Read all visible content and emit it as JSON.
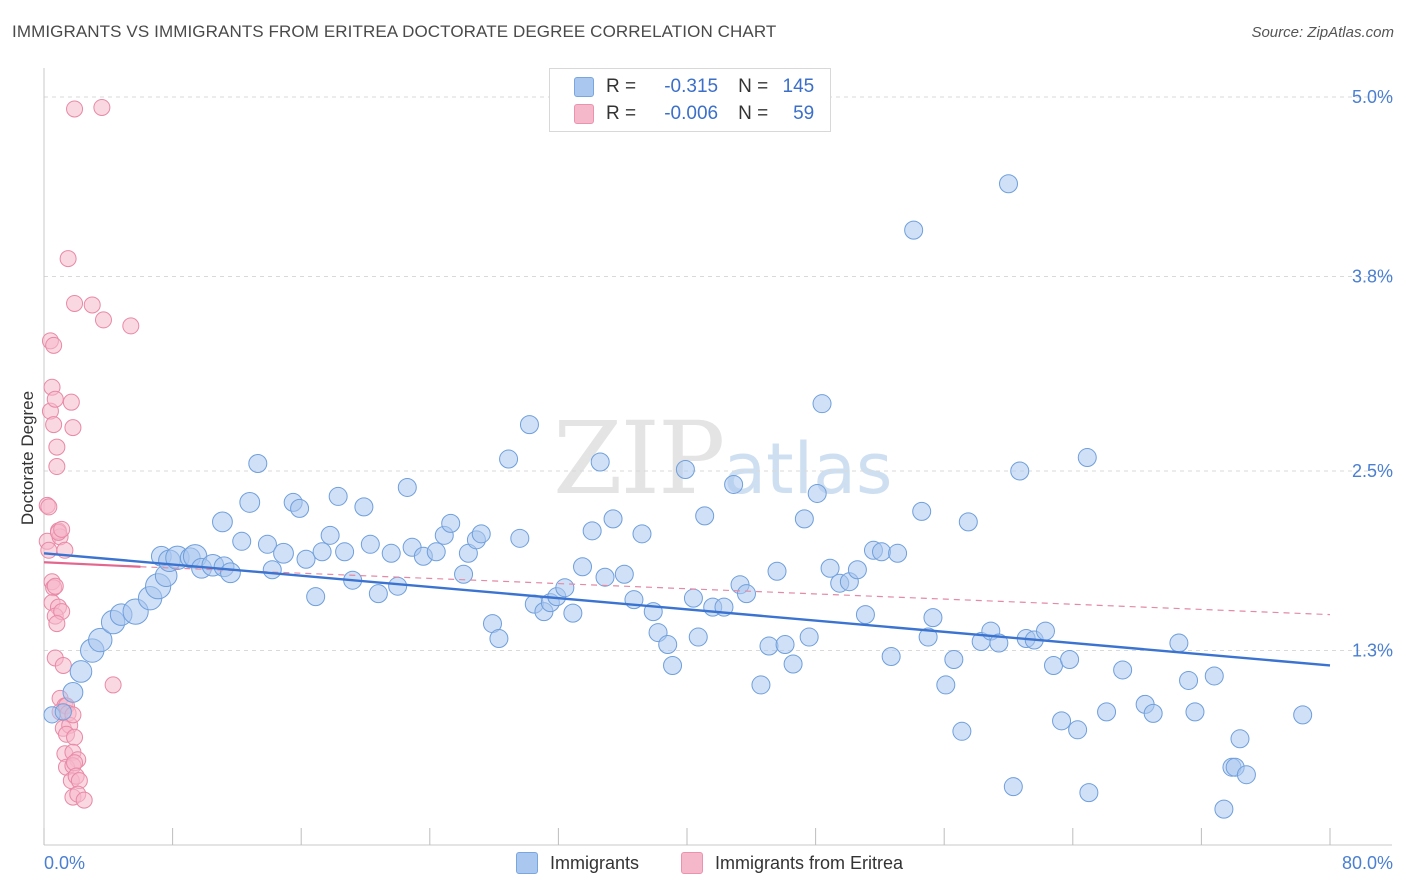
{
  "title": "IMMIGRANTS VS IMMIGRANTS FROM ERITREA DOCTORATE DEGREE CORRELATION CHART",
  "source": "Source: ZipAtlas.com",
  "watermark": {
    "zip": "ZIP",
    "atlas": "atlas"
  },
  "colors": {
    "blue": "#3b73d1",
    "blue_fill": "#a9c7ef",
    "pink": "#e3668f",
    "pink_fill": "#f5b8cb",
    "tick": "#4a7fd1"
  },
  "legend": {
    "rows": [
      {
        "r_label": "R =",
        "r_value": "-0.315",
        "n_label": "N =",
        "n_value": "145"
      },
      {
        "r_label": "R =",
        "r_value": "-0.006",
        "n_label": "N =",
        "n_value": "59"
      }
    ]
  },
  "bottom_legend": [
    "Immigrants",
    "Immigrants from Eritrea"
  ],
  "chart_data": {
    "type": "scatter",
    "title": "IMMIGRANTS VS IMMIGRANTS FROM ERITREA DOCTORATE DEGREE CORRELATION CHART",
    "xlabel": "",
    "ylabel": "Doctorate Degree",
    "xlim": [
      0,
      80
    ],
    "ylim": [
      0,
      5.15
    ],
    "x_tick_labels": [
      "0.0%",
      "80.0%"
    ],
    "y_ticks": [
      1.3,
      2.5,
      3.8,
      5.0
    ],
    "y_tick_labels": [
      "1.3%",
      "2.5%",
      "3.8%",
      "5.0%"
    ],
    "series": [
      {
        "name": "Immigrants",
        "color": "#3b73d1",
        "r": -0.315,
        "n": 145,
        "trend": {
          "x": [
            0,
            80
          ],
          "y": [
            1.95,
            1.2
          ]
        },
        "points": [
          [
            0.5,
            0.87,
            0.9
          ],
          [
            1.2,
            0.89,
            0.9
          ],
          [
            1.8,
            1.02,
            1.1
          ],
          [
            2.3,
            1.16,
            1.2
          ],
          [
            3.0,
            1.3,
            1.3
          ],
          [
            3.5,
            1.37,
            1.3
          ],
          [
            4.3,
            1.49,
            1.3
          ],
          [
            4.8,
            1.54,
            1.2
          ],
          [
            5.7,
            1.56,
            1.4
          ],
          [
            6.6,
            1.65,
            1.3
          ],
          [
            7.1,
            1.73,
            1.4
          ],
          [
            7.6,
            1.8,
            1.2
          ],
          [
            7.3,
            1.93,
            1.1
          ],
          [
            7.8,
            1.9,
            1.2
          ],
          [
            8.3,
            1.92,
            1.3
          ],
          [
            9.1,
            1.92,
            1.1
          ],
          [
            9.4,
            1.93,
            1.3
          ],
          [
            9.8,
            1.85,
            1.1
          ],
          [
            10.5,
            1.87,
            1.2
          ],
          [
            11.2,
            1.86,
            1.1
          ],
          [
            11.6,
            1.82,
            1.1
          ],
          [
            11.1,
            2.16,
            1.1
          ],
          [
            12.3,
            2.03,
            1.0
          ],
          [
            12.8,
            2.29,
            1.1
          ],
          [
            13.3,
            2.55,
            1.0
          ],
          [
            13.9,
            2.01,
            1.0
          ],
          [
            14.2,
            1.84,
            1.0
          ],
          [
            14.9,
            1.95,
            1.1
          ],
          [
            15.5,
            2.29,
            1.0
          ],
          [
            15.9,
            2.25,
            1.0
          ],
          [
            16.3,
            1.91,
            1.0
          ],
          [
            16.9,
            1.66,
            1.0
          ],
          [
            17.3,
            1.96,
            1.0
          ],
          [
            17.8,
            2.07,
            1.0
          ],
          [
            18.3,
            2.33,
            1.0
          ],
          [
            18.7,
            1.96,
            1.0
          ],
          [
            19.2,
            1.77,
            1.0
          ],
          [
            19.9,
            2.26,
            1.0
          ],
          [
            20.3,
            2.01,
            1.0
          ],
          [
            20.8,
            1.68,
            1.0
          ],
          [
            21.6,
            1.95,
            1.0
          ],
          [
            22.0,
            1.73,
            1.0
          ],
          [
            22.6,
            2.39,
            1.0
          ],
          [
            22.9,
            1.99,
            1.0
          ],
          [
            23.6,
            1.93,
            1.0
          ],
          [
            24.4,
            1.96,
            1.0
          ],
          [
            24.9,
            2.07,
            1.0
          ],
          [
            25.3,
            2.15,
            1.0
          ],
          [
            26.1,
            1.81,
            1.0
          ],
          [
            26.4,
            1.95,
            1.0
          ],
          [
            26.9,
            2.04,
            1.0
          ],
          [
            27.2,
            2.08,
            1.0
          ],
          [
            27.9,
            1.48,
            1.0
          ],
          [
            28.3,
            1.38,
            1.0
          ],
          [
            28.9,
            2.58,
            1.0
          ],
          [
            29.6,
            2.05,
            1.0
          ],
          [
            30.2,
            2.81,
            1.0
          ],
          [
            30.5,
            1.61,
            1.0
          ],
          [
            31.1,
            1.56,
            1.0
          ],
          [
            31.5,
            1.62,
            1.0
          ],
          [
            31.9,
            1.66,
            1.0
          ],
          [
            32.4,
            1.72,
            1.0
          ],
          [
            32.9,
            1.55,
            1.0
          ],
          [
            33.5,
            1.86,
            1.0
          ],
          [
            34.1,
            2.1,
            1.0
          ],
          [
            34.6,
            2.56,
            1.0
          ],
          [
            34.9,
            1.79,
            1.0
          ],
          [
            35.4,
            2.18,
            1.0
          ],
          [
            36.1,
            1.81,
            1.0
          ],
          [
            36.7,
            1.64,
            1.0
          ],
          [
            37.2,
            2.08,
            1.0
          ],
          [
            37.9,
            1.56,
            1.0
          ],
          [
            38.2,
            1.42,
            1.0
          ],
          [
            38.8,
            1.34,
            1.0
          ],
          [
            39.1,
            1.2,
            1.0
          ],
          [
            39.9,
            2.51,
            1.0
          ],
          [
            40.4,
            1.65,
            1.0
          ],
          [
            40.7,
            1.39,
            1.0
          ],
          [
            41.1,
            2.2,
            1.0
          ],
          [
            41.6,
            1.59,
            1.0
          ],
          [
            42.3,
            1.59,
            1.0
          ],
          [
            42.9,
            2.41,
            1.0
          ],
          [
            43.3,
            1.74,
            1.0
          ],
          [
            43.7,
            1.68,
            1.0
          ],
          [
            44.6,
            1.07,
            1.0
          ],
          [
            45.1,
            1.33,
            1.0
          ],
          [
            45.6,
            1.83,
            1.0
          ],
          [
            46.1,
            1.34,
            1.0
          ],
          [
            46.6,
            1.21,
            1.0
          ],
          [
            47.3,
            2.18,
            1.0
          ],
          [
            47.6,
            1.39,
            1.0
          ],
          [
            48.1,
            2.35,
            1.0
          ],
          [
            48.4,
            2.95,
            1.0
          ],
          [
            48.9,
            1.85,
            1.0
          ],
          [
            49.5,
            1.75,
            1.0
          ],
          [
            50.1,
            1.76,
            1.0
          ],
          [
            50.6,
            1.84,
            1.0
          ],
          [
            51.1,
            1.54,
            1.0
          ],
          [
            51.6,
            1.97,
            1.0
          ],
          [
            52.1,
            1.96,
            1.0
          ],
          [
            52.7,
            1.26,
            1.0
          ],
          [
            53.1,
            1.95,
            1.0
          ],
          [
            54.1,
            4.11,
            1.0
          ],
          [
            54.6,
            2.23,
            1.0
          ],
          [
            55.0,
            1.39,
            1.0
          ],
          [
            55.3,
            1.52,
            1.0
          ],
          [
            56.1,
            1.07,
            1.0
          ],
          [
            56.6,
            1.24,
            1.0
          ],
          [
            57.1,
            0.76,
            1.0
          ],
          [
            57.5,
            2.16,
            1.0
          ],
          [
            58.3,
            1.36,
            1.0
          ],
          [
            58.9,
            1.43,
            1.0
          ],
          [
            59.4,
            1.35,
            1.0
          ],
          [
            60.0,
            4.42,
            1.0
          ],
          [
            60.3,
            0.39,
            1.0
          ],
          [
            60.7,
            2.5,
            1.0
          ],
          [
            61.1,
            1.38,
            1.0
          ],
          [
            61.6,
            1.37,
            1.0
          ],
          [
            62.3,
            1.43,
            1.0
          ],
          [
            62.8,
            1.2,
            1.0
          ],
          [
            63.3,
            0.83,
            1.0
          ],
          [
            63.8,
            1.24,
            1.0
          ],
          [
            64.3,
            0.77,
            1.0
          ],
          [
            64.9,
            2.59,
            1.0
          ],
          [
            65.0,
            0.35,
            1.0
          ],
          [
            66.1,
            0.89,
            1.0
          ],
          [
            67.1,
            1.17,
            1.0
          ],
          [
            68.5,
            0.94,
            1.0
          ],
          [
            69.0,
            0.88,
            1.0
          ],
          [
            70.6,
            1.35,
            1.0
          ],
          [
            71.2,
            1.1,
            1.0
          ],
          [
            71.6,
            0.89,
            1.0
          ],
          [
            72.8,
            1.13,
            1.0
          ],
          [
            73.4,
            0.24,
            1.0
          ],
          [
            73.9,
            0.52,
            1.0
          ],
          [
            74.1,
            0.52,
            1.0
          ],
          [
            74.4,
            0.71,
            1.0
          ],
          [
            74.8,
            0.47,
            1.0
          ],
          [
            78.3,
            0.87,
            1.0
          ]
        ]
      },
      {
        "name": "Immigrants from Eritrea",
        "color": "#e3668f",
        "r": -0.006,
        "n": 59,
        "trend_solid": {
          "x": [
            0,
            6
          ],
          "y": [
            1.89,
            1.86
          ]
        },
        "trend_dashed": {
          "x": [
            6,
            80
          ],
          "y": [
            1.86,
            1.54
          ]
        },
        "points": [
          [
            0.2,
            2.27
          ],
          [
            0.3,
            2.26
          ],
          [
            0.2,
            2.03
          ],
          [
            0.3,
            1.97
          ],
          [
            0.4,
            3.37
          ],
          [
            0.5,
            3.06
          ],
          [
            0.4,
            2.9
          ],
          [
            0.6,
            3.34
          ],
          [
            0.6,
            2.81
          ],
          [
            0.7,
            2.98
          ],
          [
            0.8,
            2.66
          ],
          [
            0.8,
            2.53
          ],
          [
            0.9,
            2.1
          ],
          [
            1.0,
            2.06
          ],
          [
            0.9,
            2.09
          ],
          [
            1.1,
            2.11
          ],
          [
            0.5,
            1.76
          ],
          [
            0.6,
            1.72
          ],
          [
            0.7,
            1.73
          ],
          [
            0.5,
            1.62
          ],
          [
            0.9,
            1.59
          ],
          [
            0.7,
            1.53
          ],
          [
            1.1,
            1.56
          ],
          [
            0.8,
            1.48
          ],
          [
            0.7,
            1.25
          ],
          [
            1.2,
            1.2
          ],
          [
            1.0,
            0.98
          ],
          [
            1.3,
            0.93
          ],
          [
            1.0,
            0.89
          ],
          [
            1.4,
            0.93
          ],
          [
            1.5,
            0.88
          ],
          [
            1.2,
            0.78
          ],
          [
            1.6,
            0.8
          ],
          [
            1.4,
            0.74
          ],
          [
            1.8,
            0.87
          ],
          [
            1.9,
            0.72
          ],
          [
            1.3,
            0.61
          ],
          [
            1.8,
            0.62
          ],
          [
            2.1,
            0.57
          ],
          [
            1.4,
            0.52
          ],
          [
            1.8,
            0.53
          ],
          [
            1.9,
            0.55
          ],
          [
            1.7,
            0.43
          ],
          [
            2.0,
            0.46
          ],
          [
            2.2,
            0.43
          ],
          [
            1.8,
            0.32
          ],
          [
            2.1,
            0.34
          ],
          [
            2.5,
            0.3
          ],
          [
            1.7,
            2.96
          ],
          [
            1.8,
            2.79
          ],
          [
            1.5,
            3.92
          ],
          [
            1.9,
            3.62
          ],
          [
            3.0,
            3.61
          ],
          [
            3.7,
            3.51
          ],
          [
            5.4,
            3.47
          ],
          [
            1.9,
            4.92
          ],
          [
            3.6,
            4.93
          ],
          [
            1.3,
            1.97
          ],
          [
            4.3,
            1.07
          ]
        ]
      }
    ]
  }
}
